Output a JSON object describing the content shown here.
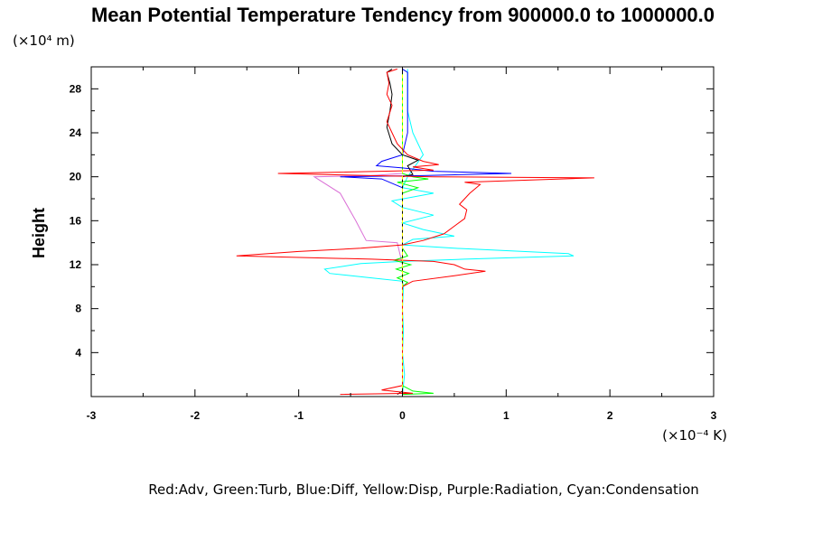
{
  "chart_data": {
    "type": "line",
    "title": "Mean Potential Temperature Tendency from 900000.0 to 1000000.0",
    "ylabel": "Height",
    "y_unit": "(×10⁴ m)",
    "x_unit": "(×10⁻⁴ K)",
    "xlim": [
      -3,
      3
    ],
    "ylim": [
      0,
      30
    ],
    "x_ticks": [
      "-3",
      "-2",
      "-1",
      "0",
      "1",
      "2",
      "3"
    ],
    "y_ticks": [
      "4",
      "8",
      "12",
      "16",
      "20",
      "24",
      "28"
    ],
    "legend_text": "Red:Adv, Green:Turb, Blue:Diff, Yellow:Disp, Purple:Radiation, Cyan:Condensation",
    "grid": false,
    "series": [
      {
        "color": "#da70d6",
        "points": [
          [
            0,
            0.2
          ],
          [
            0,
            12
          ],
          [
            -0.05,
            14
          ],
          [
            -0.35,
            14.2
          ],
          [
            -0.45,
            16
          ],
          [
            -0.6,
            18.5
          ],
          [
            -0.85,
            20
          ],
          [
            -0.3,
            20.1
          ],
          [
            0,
            20.3
          ],
          [
            0,
            29.8
          ]
        ]
      },
      {
        "color": "#00ffff",
        "points": [
          [
            0,
            0.2
          ],
          [
            0.02,
            2
          ],
          [
            0,
            4
          ],
          [
            0.01,
            6
          ],
          [
            0,
            8
          ],
          [
            0.01,
            10
          ],
          [
            0,
            10.5
          ],
          [
            -0.3,
            10.8
          ],
          [
            -0.7,
            11.2
          ],
          [
            -0.75,
            11.6
          ],
          [
            -0.4,
            12.1
          ],
          [
            0,
            12.3
          ],
          [
            0.6,
            12.5
          ],
          [
            1.65,
            12.8
          ],
          [
            1.6,
            13
          ],
          [
            0.5,
            13.5
          ],
          [
            0,
            13.8
          ],
          [
            0.1,
            14.3
          ],
          [
            0.5,
            14.6
          ],
          [
            0.2,
            15.2
          ],
          [
            0,
            15.8
          ],
          [
            0.3,
            16.5
          ],
          [
            0,
            17.2
          ],
          [
            -0.1,
            17.8
          ],
          [
            0.3,
            18.5
          ],
          [
            0,
            19
          ],
          [
            0.05,
            20
          ],
          [
            0.2,
            22
          ],
          [
            0.1,
            24
          ],
          [
            0.05,
            26
          ],
          [
            0.05,
            28
          ],
          [
            0.05,
            29.8
          ]
        ]
      },
      {
        "color": "#00ff00",
        "points": [
          [
            0,
            0.2
          ],
          [
            0.3,
            0.3
          ],
          [
            0.1,
            0.5
          ],
          [
            0,
            1
          ],
          [
            0,
            10
          ],
          [
            0.05,
            10.4
          ],
          [
            -0.05,
            10.8
          ],
          [
            0.06,
            11.2
          ],
          [
            -0.06,
            11.6
          ],
          [
            0.08,
            12
          ],
          [
            -0.08,
            12.4
          ],
          [
            0.05,
            12.8
          ],
          [
            0,
            13.5
          ],
          [
            0,
            18.5
          ],
          [
            0.15,
            19
          ],
          [
            -0.05,
            19.5
          ],
          [
            0.25,
            19.8
          ],
          [
            0.1,
            20
          ],
          [
            0,
            20.3
          ],
          [
            0,
            29.8
          ]
        ]
      },
      {
        "color": "#0000ff",
        "points": [
          [
            0,
            0.2
          ],
          [
            0,
            19
          ],
          [
            -0.2,
            19.8
          ],
          [
            -0.6,
            20
          ],
          [
            0.2,
            20.1
          ],
          [
            1.05,
            20.3
          ],
          [
            0.3,
            20.5
          ],
          [
            0,
            20.8
          ],
          [
            -0.25,
            21
          ],
          [
            -0.2,
            21.4
          ],
          [
            0,
            22
          ],
          [
            0.05,
            24
          ],
          [
            0.05,
            26
          ],
          [
            0.05,
            28
          ],
          [
            0.05,
            29.5
          ],
          [
            0,
            29.8
          ]
        ]
      },
      {
        "color": "#000000",
        "points": [
          [
            -0.05,
            0.2
          ],
          [
            0,
            0.5
          ],
          [
            0,
            20
          ],
          [
            0.1,
            20.2
          ],
          [
            0.05,
            21
          ],
          [
            0.15,
            21.5
          ],
          [
            0,
            22
          ],
          [
            -0.1,
            23
          ],
          [
            -0.15,
            24.5
          ],
          [
            -0.12,
            26
          ],
          [
            -0.1,
            27.5
          ],
          [
            -0.12,
            28.5
          ],
          [
            -0.15,
            29.5
          ],
          [
            -0.1,
            29.8
          ]
        ]
      },
      {
        "color": "#ff0000",
        "points": [
          [
            -0.6,
            0.2
          ],
          [
            0.1,
            0.3
          ],
          [
            -0.2,
            0.6
          ],
          [
            0,
            1
          ],
          [
            0,
            10
          ],
          [
            0.1,
            10.5
          ],
          [
            0.5,
            11
          ],
          [
            0.8,
            11.4
          ],
          [
            0.6,
            11.6
          ],
          [
            0.5,
            12
          ],
          [
            0.3,
            12.3
          ],
          [
            -0.3,
            12.5
          ],
          [
            -1.6,
            12.8
          ],
          [
            -1,
            13.2
          ],
          [
            -0.4,
            13.5
          ],
          [
            0,
            13.8
          ],
          [
            0.2,
            14.2
          ],
          [
            0.4,
            14.8
          ],
          [
            0.5,
            15.5
          ],
          [
            0.6,
            16.2
          ],
          [
            0.62,
            17
          ],
          [
            0.55,
            17.5
          ],
          [
            0.6,
            18
          ],
          [
            0.65,
            18.5
          ],
          [
            0.75,
            19.3
          ],
          [
            0.6,
            19.5
          ],
          [
            1.85,
            19.9
          ],
          [
            0.3,
            20
          ],
          [
            -0.3,
            20.1
          ],
          [
            -1.2,
            20.3
          ],
          [
            0.3,
            20.6
          ],
          [
            0.1,
            20.9
          ],
          [
            0.35,
            21.1
          ],
          [
            0.2,
            21.4
          ],
          [
            0.05,
            22
          ],
          [
            -0.05,
            23
          ],
          [
            -0.1,
            24
          ],
          [
            -0.15,
            25
          ],
          [
            -0.1,
            26.5
          ],
          [
            -0.15,
            27.5
          ],
          [
            -0.13,
            28.5
          ],
          [
            -0.15,
            29.5
          ],
          [
            -0.05,
            29.8
          ]
        ]
      },
      {
        "color": "#ffff00",
        "points": [
          [
            0,
            0.2
          ],
          [
            0,
            29.8
          ]
        ],
        "dashed": true
      }
    ]
  }
}
